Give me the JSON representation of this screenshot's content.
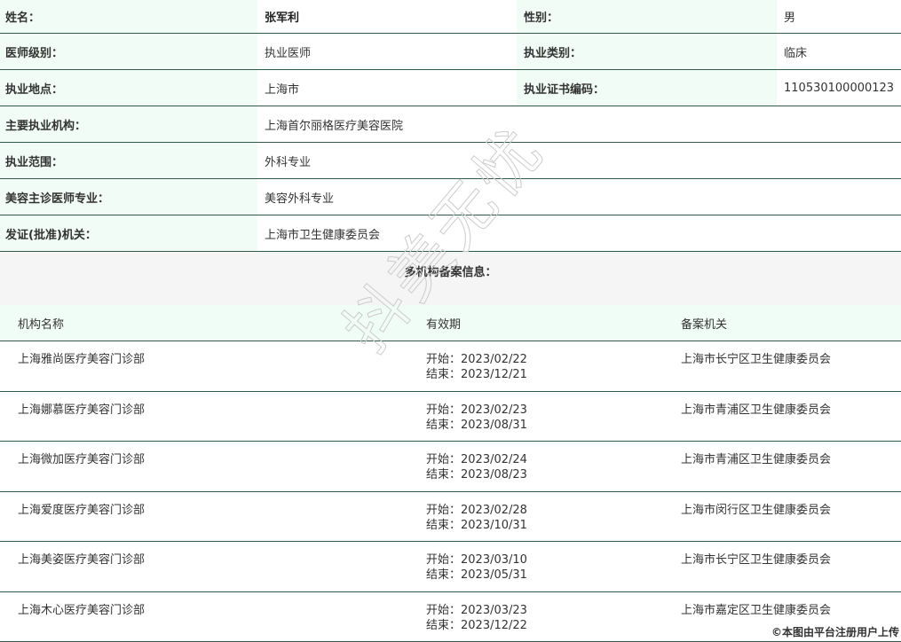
{
  "info": {
    "rows": [
      {
        "l1": "姓名：",
        "v1": "张军利",
        "l2": "性别：",
        "v2": "男"
      },
      {
        "l1": "医师级别：",
        "v1": "执业医师",
        "l2": "执业类别：",
        "v2": "临床"
      },
      {
        "l1": "执业地点：",
        "v1": "上海市",
        "l2": "执业证书编码：",
        "v2": "110530100000123"
      }
    ],
    "wide_rows": [
      {
        "label": "主要执业机构：",
        "value": "上海首尔丽格医疗美容医院"
      },
      {
        "label": "执业范围：",
        "value": "外科专业"
      },
      {
        "label": "美容主诊医师专业：",
        "value": "美容外科专业"
      },
      {
        "label": "发证(批准)机关：",
        "value": "上海市卫生健康委员会"
      }
    ]
  },
  "filing": {
    "title": "多机构备案信息：",
    "headers": [
      "机构名称",
      "有效期",
      "备案机关"
    ],
    "rows": [
      {
        "name": "上海雅尚医疗美容门诊部",
        "start": "开始：2023/02/22",
        "end": "结束：2023/12/21",
        "authority": "上海市长宁区卫生健康委员会"
      },
      {
        "name": "上海娜慕医疗美容门诊部",
        "start": "开始：2023/02/23",
        "end": "结束：2023/08/31",
        "authority": "上海市青浦区卫生健康委员会"
      },
      {
        "name": "上海微加医疗美容门诊部",
        "start": "开始：2023/02/24",
        "end": "结束：2023/08/23",
        "authority": "上海市青浦区卫生健康委员会"
      },
      {
        "name": "上海爱度医疗美容门诊部",
        "start": "开始：2023/02/28",
        "end": "结束：2023/10/31",
        "authority": "上海市闵行区卫生健康委员会"
      },
      {
        "name": "上海美姿医疗美容门诊部",
        "start": "开始：2023/03/10",
        "end": "结束：2023/05/31",
        "authority": "上海市长宁区卫生健康委员会"
      },
      {
        "name": "上海木心医疗美容门诊部",
        "start": "开始：2023/03/23",
        "end": "结束：2023/12/22",
        "authority": "上海市嘉定区卫生健康委员会"
      }
    ]
  },
  "watermark": "抖美无忧",
  "footer": "©本图由平台注册用户上传",
  "colors": {
    "label_bg": "#f1fcf6",
    "border": "#2f5b48",
    "section_bg": "#f5f5f5"
  }
}
